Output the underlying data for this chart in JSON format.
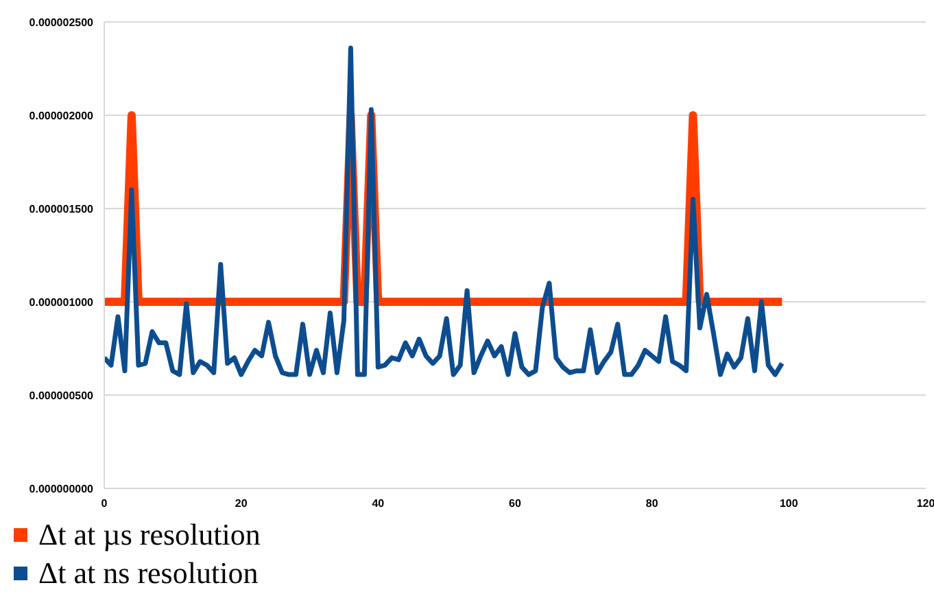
{
  "chart_data": {
    "type": "line",
    "x": [
      0,
      1,
      2,
      3,
      4,
      5,
      6,
      7,
      8,
      9,
      10,
      11,
      12,
      13,
      14,
      15,
      16,
      17,
      18,
      19,
      20,
      21,
      22,
      23,
      24,
      25,
      26,
      27,
      28,
      29,
      30,
      31,
      32,
      33,
      34,
      35,
      36,
      37,
      38,
      39,
      40,
      41,
      42,
      43,
      44,
      45,
      46,
      47,
      48,
      49,
      50,
      51,
      52,
      53,
      54,
      55,
      56,
      57,
      58,
      59,
      60,
      61,
      62,
      63,
      64,
      65,
      66,
      67,
      68,
      69,
      70,
      71,
      72,
      73,
      74,
      75,
      76,
      77,
      78,
      79,
      80,
      81,
      82,
      83,
      84,
      85,
      86,
      87,
      88,
      89,
      90,
      91,
      92,
      93,
      94,
      95,
      96,
      97,
      98,
      99
    ],
    "series": [
      {
        "name": "Δt at µs resolution",
        "color": "#ff3d00",
        "values": [
          1e-06,
          1e-06,
          1e-06,
          1e-06,
          2e-06,
          1e-06,
          1e-06,
          1e-06,
          1e-06,
          1e-06,
          1e-06,
          1e-06,
          1e-06,
          1e-06,
          1e-06,
          1e-06,
          1e-06,
          1e-06,
          1e-06,
          1e-06,
          1e-06,
          1e-06,
          1e-06,
          1e-06,
          1e-06,
          1e-06,
          1e-06,
          1e-06,
          1e-06,
          1e-06,
          1e-06,
          1e-06,
          1e-06,
          1e-06,
          1e-06,
          1e-06,
          2e-06,
          1e-06,
          1e-06,
          2e-06,
          1e-06,
          1e-06,
          1e-06,
          1e-06,
          1e-06,
          1e-06,
          1e-06,
          1e-06,
          1e-06,
          1e-06,
          1e-06,
          1e-06,
          1e-06,
          1e-06,
          1e-06,
          1e-06,
          1e-06,
          1e-06,
          1e-06,
          1e-06,
          1e-06,
          1e-06,
          1e-06,
          1e-06,
          1e-06,
          1e-06,
          1e-06,
          1e-06,
          1e-06,
          1e-06,
          1e-06,
          1e-06,
          1e-06,
          1e-06,
          1e-06,
          1e-06,
          1e-06,
          1e-06,
          1e-06,
          1e-06,
          1e-06,
          1e-06,
          1e-06,
          1e-06,
          1e-06,
          1e-06,
          2e-06,
          1e-06,
          1e-06,
          1e-06,
          1e-06,
          1e-06,
          1e-06,
          1e-06,
          1e-06,
          1e-06,
          1e-06,
          1e-06,
          1e-06,
          1e-06
        ]
      },
      {
        "name": "Δt at ns resolution",
        "color": "#0d4d8f",
        "values": [
          7e-07,
          6.6e-07,
          9.2e-07,
          6.3e-07,
          1.6e-06,
          6.6e-07,
          6.7e-07,
          8.4e-07,
          7.8e-07,
          7.8e-07,
          6.3e-07,
          6.1e-07,
          9.9e-07,
          6.2e-07,
          6.8e-07,
          6.6e-07,
          6.2e-07,
          1.2e-06,
          6.7e-07,
          7e-07,
          6.1e-07,
          6.8e-07,
          7.4e-07,
          7.1e-07,
          8.9e-07,
          7.1e-07,
          6.2e-07,
          6.1e-07,
          6.1e-07,
          8.8e-07,
          6.1e-07,
          7.4e-07,
          6.2e-07,
          9.4e-07,
          6.2e-07,
          9e-07,
          2.36e-06,
          6.1e-07,
          6.1e-07,
          2.03e-06,
          6.5e-07,
          6.6e-07,
          7e-07,
          6.9e-07,
          7.8e-07,
          7.1e-07,
          8e-07,
          7.1e-07,
          6.7e-07,
          7.1e-07,
          9.1e-07,
          6.1e-07,
          6.6e-07,
          1.06e-06,
          6.2e-07,
          7.1e-07,
          7.9e-07,
          7.1e-07,
          7.6e-07,
          6.1e-07,
          8.3e-07,
          6.5e-07,
          6.1e-07,
          6.3e-07,
          9.7e-07,
          1.1e-06,
          7e-07,
          6.5e-07,
          6.2e-07,
          6.3e-07,
          6.3e-07,
          8.5e-07,
          6.2e-07,
          6.8e-07,
          7.3e-07,
          8.8e-07,
          6.1e-07,
          6.1e-07,
          6.6e-07,
          7.4e-07,
          7.1e-07,
          6.8e-07,
          9.2e-07,
          6.8e-07,
          6.6e-07,
          6.3e-07,
          1.55e-06,
          8.6e-07,
          1.04e-06,
          8.3e-07,
          6.1e-07,
          7.2e-07,
          6.5e-07,
          7e-07,
          9.1e-07,
          6.3e-07,
          1e-06,
          6.6e-07,
          6.1e-07,
          6.7e-07
        ]
      }
    ],
    "xlim": [
      0,
      120
    ],
    "xticks": [
      0,
      20,
      40,
      60,
      80,
      100,
      120
    ],
    "ylim": [
      0,
      2.5e-06
    ],
    "yticks": [
      {
        "value": 0,
        "label": "0.000000000"
      },
      {
        "value": 5e-07,
        "label": "0.000000500"
      },
      {
        "value": 1e-06,
        "label": "0.000001000"
      },
      {
        "value": 1.5e-06,
        "label": "0.000001500"
      },
      {
        "value": 2e-06,
        "label": "0.000002000"
      },
      {
        "value": 2.5e-06,
        "label": "0.000002500"
      }
    ],
    "grid": "y",
    "legend": "bottom",
    "marker": "none",
    "line_style": "solid"
  }
}
